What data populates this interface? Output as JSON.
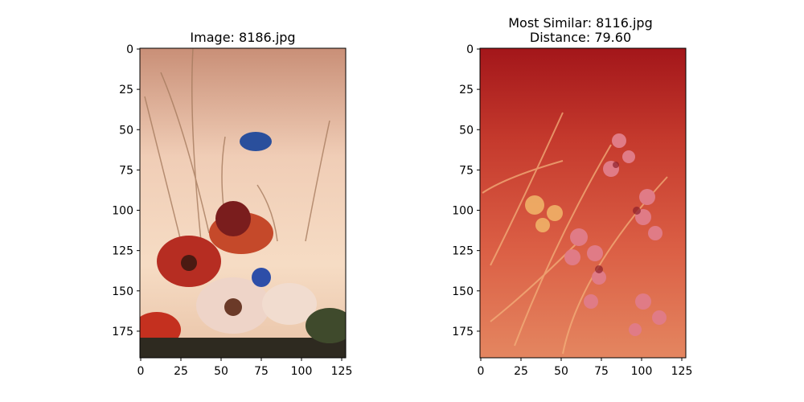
{
  "chart_data": [
    {
      "type": "image",
      "title": "Image: 8186.jpg",
      "image_width": 128,
      "image_height": 192,
      "x_ticks": [
        0,
        25,
        50,
        75,
        100,
        125
      ],
      "y_ticks": [
        0,
        25,
        50,
        75,
        100,
        125,
        150,
        175
      ],
      "palette": {
        "sky_top": "#c98f77",
        "sky_mid": "#f0cdb6",
        "sky_low": "#f6dcc4",
        "ground": "#2e2a20"
      }
    },
    {
      "type": "image",
      "title_lines": [
        "Most Similar: 8116.jpg",
        "Distance: 79.60"
      ],
      "image_width": 128,
      "image_height": 192,
      "x_ticks": [
        0,
        25,
        50,
        75,
        100,
        125
      ],
      "y_ticks": [
        0,
        25,
        50,
        75,
        100,
        125,
        150,
        175
      ],
      "palette": {
        "top": "#a3161a",
        "mid": "#d8523c",
        "low": "#e58560"
      }
    }
  ]
}
